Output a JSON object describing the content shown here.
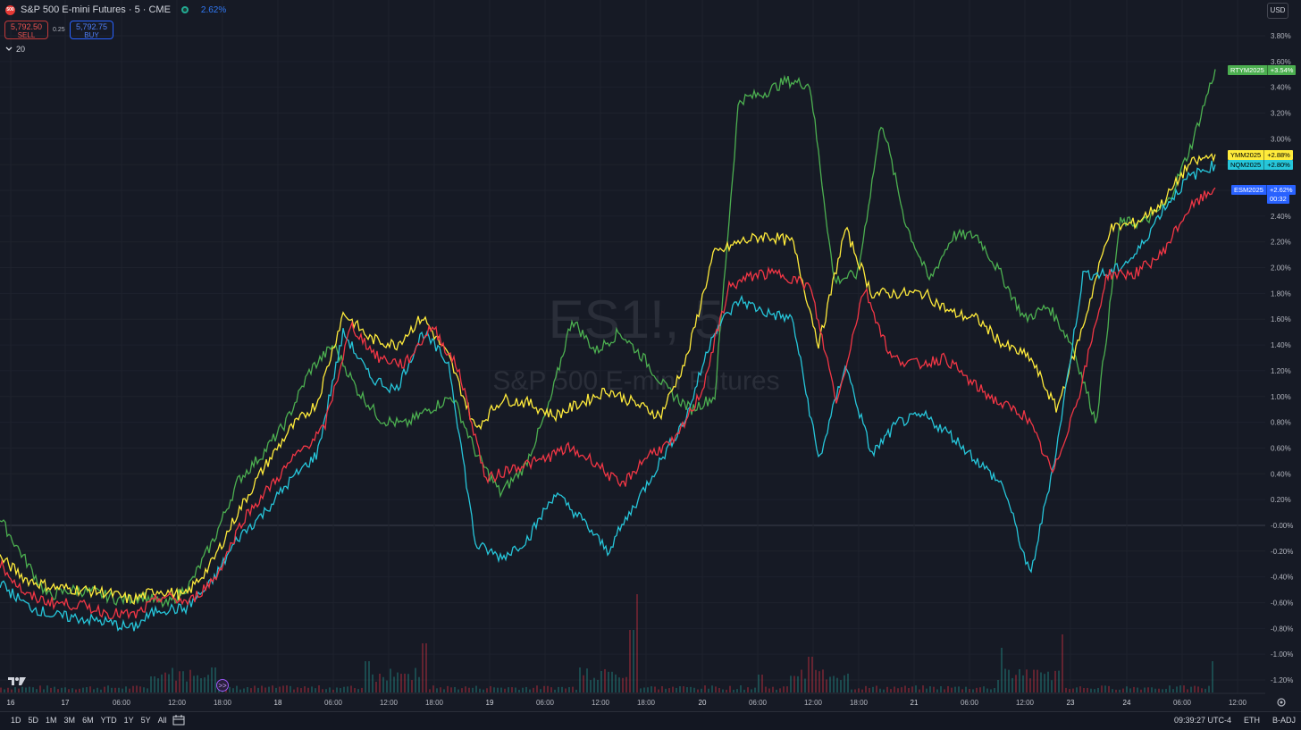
{
  "header": {
    "logo_text": "500",
    "symbol_title": "S&P 500 E-mini Futures · 5 · CME",
    "change": "2.62%"
  },
  "trade": {
    "sell_price": "5,792.50",
    "sell_label": "SELL",
    "spread": "0.25",
    "buy_price": "5,792.75",
    "buy_label": "BUY"
  },
  "indicators_toggle": "20",
  "currency": "USD",
  "watermark": {
    "big": "ES1!, 5",
    "sub": "S&P 500 E-mini Futures"
  },
  "bottom_bar": {
    "ranges": [
      "1D",
      "5D",
      "1M",
      "3M",
      "6M",
      "YTD",
      "1Y",
      "5Y",
      "All"
    ],
    "clock": "09:39:27 UTC-4",
    "session": "ETH",
    "adjust": "B-ADJ"
  },
  "icons": {
    "logo": "tradingview-logo-icon",
    "calendar": "calendar-range-icon",
    "settings": "gear-icon",
    "goto": "go-to-realtime-icon",
    "collapse": "chevron-down-icon"
  },
  "chart_data": {
    "type": "line",
    "y_unit": "%",
    "ylim": [
      -1.3,
      3.9
    ],
    "y_ticks": [
      "3.80%",
      "3.60%",
      "3.40%",
      "3.20%",
      "3.00%",
      "2.80%",
      "2.60%",
      "2.40%",
      "2.20%",
      "2.00%",
      "1.80%",
      "1.60%",
      "1.40%",
      "1.20%",
      "1.00%",
      "0.80%",
      "0.60%",
      "0.40%",
      "0.20%",
      "-0.00%",
      "-0.20%",
      "-0.40%",
      "-0.60%",
      "-0.80%",
      "-1.00%",
      "-1.20%"
    ],
    "x_ticks": [
      "16",
      "17",
      "06:00",
      "12:00",
      "18:00",
      "18",
      "06:00",
      "12:00",
      "18:00",
      "19",
      "06:00",
      "12:00",
      "18:00",
      "20",
      "06:00",
      "12:00",
      "18:00",
      "21",
      "06:00",
      "12:00",
      "23",
      "24",
      "06:00",
      "12:00"
    ],
    "grid": true,
    "series": [
      {
        "name": "RTYM2025",
        "label": "+3.54%",
        "color": "#4caf50",
        "values": [
          0.05,
          -0.25,
          -0.55,
          -0.5,
          -0.52,
          -0.58,
          -0.55,
          -0.62,
          -0.45,
          -0.1,
          0.35,
          0.55,
          0.8,
          1.2,
          1.4,
          1.05,
          0.82,
          0.78,
          0.9,
          1.0,
          0.55,
          0.25,
          0.45,
          0.9,
          1.6,
          1.35,
          1.5,
          1.3,
          1.05,
          0.9,
          1.0,
          3.3,
          3.35,
          3.45,
          3.42,
          1.9,
          1.95,
          3.15,
          2.35,
          1.9,
          2.25,
          2.25,
          1.95,
          1.6,
          1.7,
          1.4,
          0.8,
          2.35,
          2.35,
          2.5,
          2.95,
          3.54
        ]
      },
      {
        "name": "YMM2025",
        "label": "+2.88%",
        "color": "#ffeb3b",
        "values": [
          -0.25,
          -0.42,
          -0.48,
          -0.5,
          -0.52,
          -0.58,
          -0.5,
          -0.55,
          -0.3,
          0.1,
          0.45,
          0.75,
          0.95,
          1.65,
          1.45,
          1.4,
          1.62,
          1.3,
          0.75,
          0.98,
          0.95,
          0.85,
          0.95,
          1.05,
          0.95,
          0.85,
          1.3,
          2.1,
          2.2,
          2.25,
          2.2,
          1.4,
          2.3,
          1.8,
          1.8,
          1.8,
          1.65,
          1.6,
          1.4,
          1.3,
          0.9,
          1.55,
          2.3,
          2.35,
          2.5,
          2.8,
          2.88
        ]
      },
      {
        "name": "NQM2025",
        "label": "+2.80%",
        "color": "#26c6da",
        "values": [
          -0.45,
          -0.62,
          -0.7,
          -0.72,
          -0.75,
          -0.8,
          -0.65,
          -0.65,
          -0.45,
          -0.1,
          0.1,
          0.35,
          0.55,
          1.5,
          1.15,
          1.05,
          1.5,
          1.25,
          -0.15,
          -0.25,
          -0.1,
          0.25,
          0.05,
          -0.2,
          0.15,
          0.5,
          0.85,
          1.5,
          1.75,
          1.65,
          1.6,
          0.5,
          1.25,
          0.55,
          0.8,
          0.85,
          0.7,
          0.5,
          0.3,
          -0.4,
          0.6,
          1.95,
          1.95,
          2.1,
          2.45,
          2.7,
          2.8
        ]
      },
      {
        "name": "ESM2025",
        "label": "+2.62%",
        "color": "#f23645",
        "values": [
          -0.3,
          -0.55,
          -0.6,
          -0.62,
          -0.68,
          -0.7,
          -0.55,
          -0.6,
          -0.4,
          0.05,
          0.3,
          0.55,
          0.75,
          1.55,
          1.3,
          1.25,
          1.55,
          1.2,
          0.35,
          0.45,
          0.5,
          0.6,
          0.5,
          0.3,
          0.55,
          0.65,
          1.05,
          1.85,
          1.95,
          1.95,
          1.85,
          0.95,
          1.85,
          1.3,
          1.25,
          1.3,
          1.1,
          0.95,
          0.85,
          0.4,
          1.05,
          1.95,
          1.95,
          2.1,
          2.45,
          2.62
        ]
      }
    ],
    "countdown": "00:32"
  }
}
